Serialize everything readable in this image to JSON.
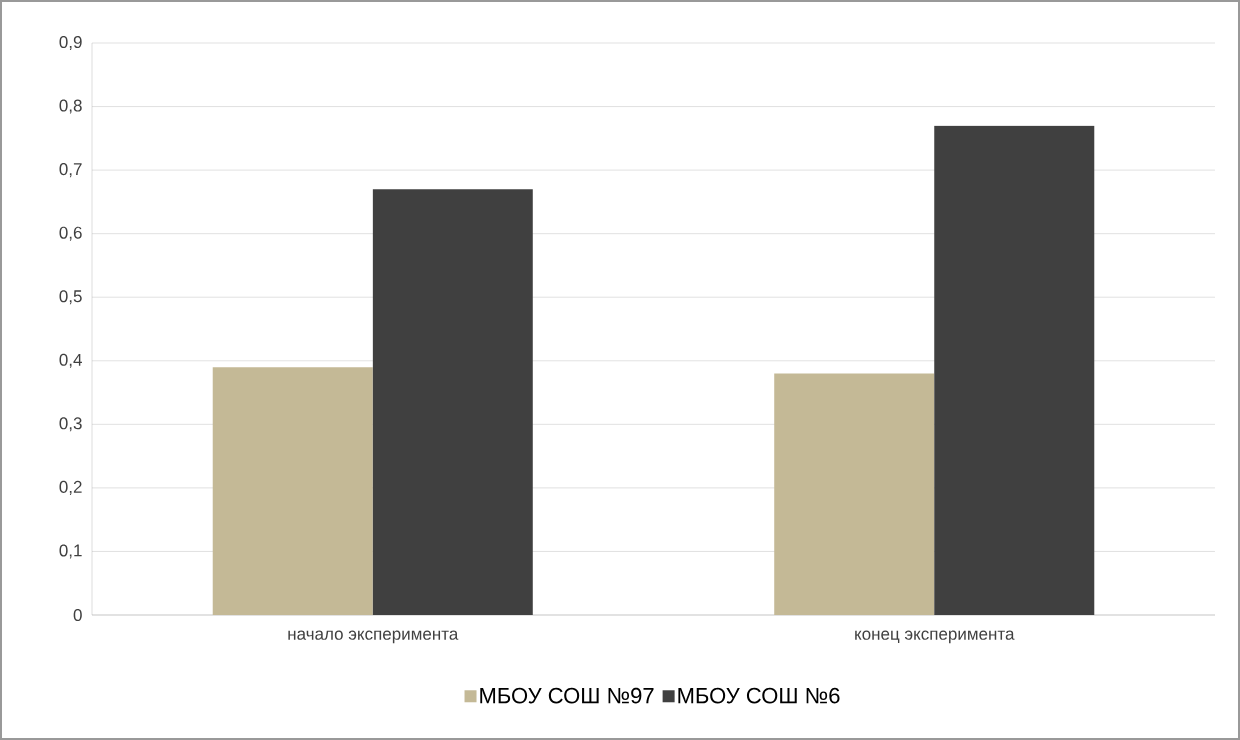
{
  "chart_data": {
    "type": "bar",
    "categories": [
      "начало эксперимента",
      "конец эксперимента"
    ],
    "series": [
      {
        "name": "МБОУ СОШ №97",
        "color": "#c4b996",
        "values": [
          0.39,
          0.38
        ]
      },
      {
        "name": "МБОУ СОШ №6",
        "color": "#404040",
        "values": [
          0.67,
          0.77
        ]
      }
    ],
    "ylim": [
      0,
      0.9
    ],
    "yticks": [
      0,
      {
        "value": 0.1,
        "label": "0,1"
      },
      {
        "value": 0.2,
        "label": "0,2"
      },
      {
        "value": 0.3,
        "label": "0,3"
      },
      {
        "value": 0.4,
        "label": "0,4"
      },
      {
        "value": 0.5,
        "label": "0,5"
      },
      {
        "value": 0.6,
        "label": "0,6"
      },
      {
        "value": 0.7,
        "label": "0,7"
      },
      {
        "value": 0.8,
        "label": "0,8"
      },
      {
        "value": 0.9,
        "label": "0,9"
      }
    ],
    "grid": "y",
    "legend": "bottom"
  }
}
